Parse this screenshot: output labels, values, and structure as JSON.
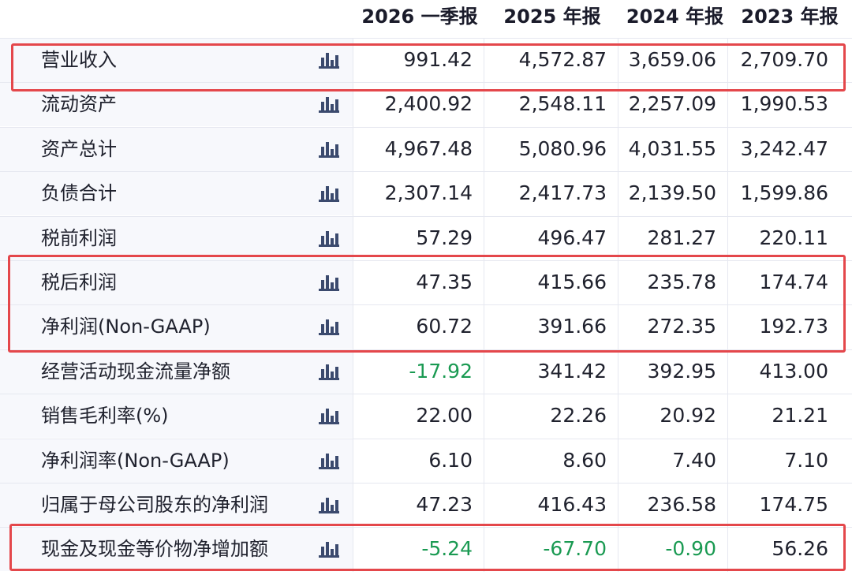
{
  "header": {
    "columns": [
      "2026 一季报",
      "2025 年报",
      "2024 年报",
      "2023 年报"
    ]
  },
  "rows": [
    {
      "label": "营业收入",
      "values": [
        "991.42",
        "4,572.87",
        "3,659.06",
        "2,709.70"
      ]
    },
    {
      "label": "流动资产",
      "values": [
        "2,400.92",
        "2,548.11",
        "2,257.09",
        "1,990.53"
      ]
    },
    {
      "label": "资产总计",
      "values": [
        "4,967.48",
        "5,080.96",
        "4,031.55",
        "3,242.47"
      ]
    },
    {
      "label": "负债合计",
      "values": [
        "2,307.14",
        "2,417.73",
        "2,139.50",
        "1,599.86"
      ]
    },
    {
      "label": "税前利润",
      "values": [
        "57.29",
        "496.47",
        "281.27",
        "220.11"
      ]
    },
    {
      "label": "税后利润",
      "values": [
        "47.35",
        "415.66",
        "235.78",
        "174.74"
      ]
    },
    {
      "label": "净利润(Non-GAAP)",
      "values": [
        "60.72",
        "391.66",
        "272.35",
        "192.73"
      ]
    },
    {
      "label": "经营活动现金流量净额",
      "values": [
        "-17.92",
        "341.42",
        "392.95",
        "413.00"
      ]
    },
    {
      "label": "销售毛利率(%)",
      "values": [
        "22.00",
        "22.26",
        "20.92",
        "21.21"
      ]
    },
    {
      "label": "净利润率(Non-GAAP)",
      "values": [
        "6.10",
        "8.60",
        "7.40",
        "7.10"
      ]
    },
    {
      "label": "归属于母公司股东的净利润",
      "values": [
        "47.23",
        "416.43",
        "236.58",
        "174.75"
      ]
    },
    {
      "label": "现金及现金等价物净增加额",
      "values": [
        "-5.24",
        "-67.70",
        "-0.90",
        "56.26"
      ]
    }
  ],
  "row_icon": "bar-chart-icon",
  "colors": {
    "negative": "#1a9a52",
    "highlight": "#e4474b",
    "label_bg": "#f7f8fc"
  }
}
